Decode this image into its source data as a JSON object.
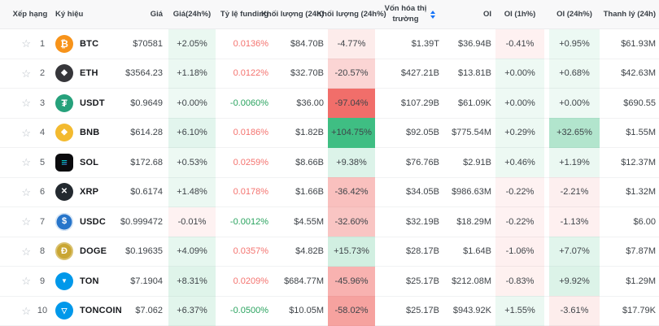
{
  "table": {
    "columns": {
      "rank": "Xếp hạng",
      "symbol": "Ký hiệu",
      "price": "Giá",
      "chg24": "Giá(24h%)",
      "funding": "Tỷ lệ funding",
      "vol": "Khối lượng (24h)",
      "volPct": "Khối lượng (24h%)",
      "mcap": "Vốn hóa thị trường",
      "oi": "OI",
      "oi1h": "OI (1h%)",
      "oi24h": "OI (24h%)",
      "liq": "Thanh lý (24h)"
    },
    "sorted_column": "mcap",
    "rows": [
      {
        "rank": "1",
        "symbol": "BTC",
        "price": "$70581",
        "chg24": "+2.05%",
        "funding": "0.0136%",
        "vol": "$84.70B",
        "volPct": "-4.77%",
        "mcap": "$1.39T",
        "oi": "$36.94B",
        "oi1h": "-0.41%",
        "oi24h": "+0.95%",
        "liq": "$61.93M"
      },
      {
        "rank": "2",
        "symbol": "ETH",
        "price": "$3564.23",
        "chg24": "+1.18%",
        "funding": "0.0122%",
        "vol": "$32.70B",
        "volPct": "-20.57%",
        "mcap": "$427.21B",
        "oi": "$13.81B",
        "oi1h": "+0.00%",
        "oi24h": "+0.68%",
        "liq": "$42.63M"
      },
      {
        "rank": "3",
        "symbol": "USDT",
        "price": "$0.9649",
        "chg24": "+0.00%",
        "funding": "-0.0060%",
        "vol": "$36.00",
        "volPct": "-97.04%",
        "mcap": "$107.29B",
        "oi": "$61.09K",
        "oi1h": "+0.00%",
        "oi24h": "+0.00%",
        "liq": "$690.55"
      },
      {
        "rank": "4",
        "symbol": "BNB",
        "price": "$614.28",
        "chg24": "+6.10%",
        "funding": "0.0186%",
        "vol": "$1.82B",
        "volPct": "+104.75%",
        "mcap": "$92.05B",
        "oi": "$775.54M",
        "oi1h": "+0.29%",
        "oi24h": "+32.65%",
        "liq": "$1.55M"
      },
      {
        "rank": "5",
        "symbol": "SOL",
        "price": "$172.68",
        "chg24": "+0.53%",
        "funding": "0.0259%",
        "vol": "$8.66B",
        "volPct": "+9.38%",
        "mcap": "$76.76B",
        "oi": "$2.91B",
        "oi1h": "+0.46%",
        "oi24h": "+1.19%",
        "liq": "$12.37M"
      },
      {
        "rank": "6",
        "symbol": "XRP",
        "price": "$0.6174",
        "chg24": "+1.48%",
        "funding": "0.0178%",
        "vol": "$1.66B",
        "volPct": "-36.42%",
        "mcap": "$34.05B",
        "oi": "$986.63M",
        "oi1h": "-0.22%",
        "oi24h": "-2.21%",
        "liq": "$1.32M"
      },
      {
        "rank": "7",
        "symbol": "USDC",
        "price": "$0.999472",
        "chg24": "-0.01%",
        "funding": "-0.0012%",
        "vol": "$4.55M",
        "volPct": "-32.60%",
        "mcap": "$32.19B",
        "oi": "$18.29M",
        "oi1h": "-0.22%",
        "oi24h": "-1.13%",
        "liq": "$6.00"
      },
      {
        "rank": "8",
        "symbol": "DOGE",
        "price": "$0.19635",
        "chg24": "+4.09%",
        "funding": "0.0357%",
        "vol": "$4.82B",
        "volPct": "+15.73%",
        "mcap": "$28.17B",
        "oi": "$1.64B",
        "oi1h": "-1.06%",
        "oi24h": "+7.07%",
        "liq": "$7.87M"
      },
      {
        "rank": "9",
        "symbol": "TON",
        "price": "$7.1904",
        "chg24": "+8.31%",
        "funding": "0.0209%",
        "vol": "$684.77M",
        "volPct": "-45.96%",
        "mcap": "$25.17B",
        "oi": "$212.08M",
        "oi1h": "-0.83%",
        "oi24h": "+9.92%",
        "liq": "$1.29M"
      },
      {
        "rank": "10",
        "symbol": "TONCOIN",
        "price": "$7.062",
        "chg24": "+6.37%",
        "funding": "-0.0500%",
        "vol": "$10.05M",
        "volPct": "-58.02%",
        "mcap": "$25.17B",
        "oi": "$943.92K",
        "oi1h": "+1.55%",
        "oi24h": "-3.61%",
        "liq": "$17.79K"
      }
    ]
  },
  "icons": {
    "star": "☆",
    "coins": {
      "BTC": {
        "bg": "#f7931a",
        "glyph": "₿"
      },
      "ETH": {
        "bg": "#36363a",
        "glyph": "◆"
      },
      "USDT": {
        "bg": "#26a17b",
        "glyph": "₮"
      },
      "BNB": {
        "bg": "#f3ba2f",
        "glyph": "◆"
      },
      "SOL": {
        "bg": "#0b0b0e",
        "glyph": "≡"
      },
      "XRP": {
        "bg": "#23292f",
        "glyph": "✕"
      },
      "USDC": {
        "bg": "#2775ca",
        "glyph": "$"
      },
      "DOGE": {
        "bg": "#c9a633",
        "glyph": "Đ"
      },
      "TON": {
        "bg": "#0098ea",
        "glyph": "▼"
      },
      "TONCOIN": {
        "bg": "#0098ea",
        "glyph": "▽"
      }
    }
  },
  "colors": {
    "header_bg": "#f8f8f9",
    "green_rgb": "63,190,131",
    "red_rgb": "241,110,106",
    "funding_positive": "#f4736f",
    "funding_negative": "#2aa35f",
    "sort_icon": "#1673f8"
  }
}
